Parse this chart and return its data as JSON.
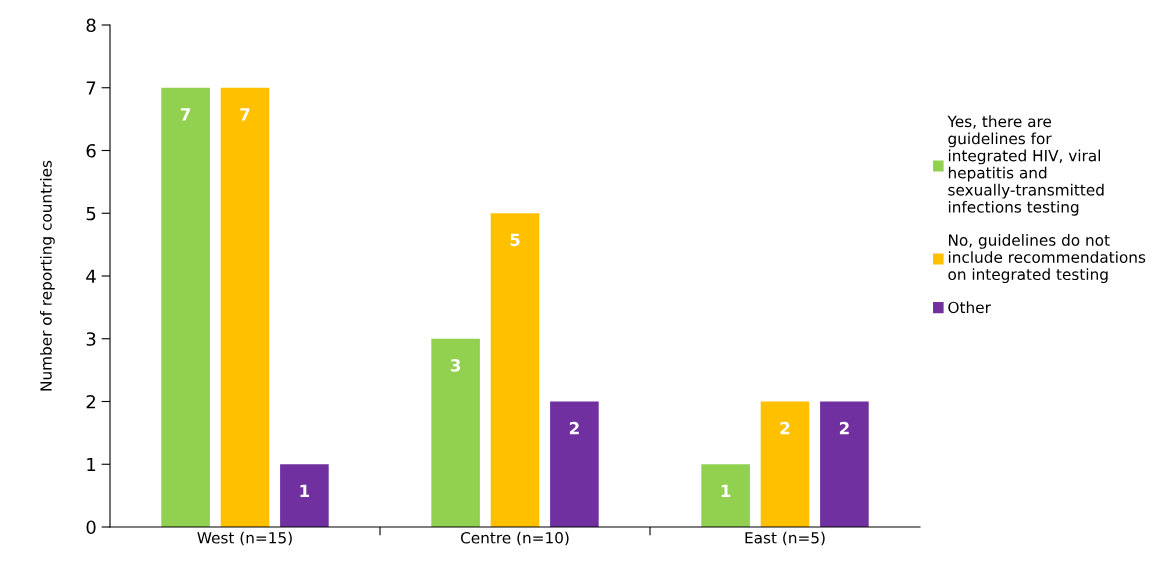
{
  "chart_data": {
    "type": "bar",
    "ylabel": "Number of reporting countries",
    "categories": [
      "West (n=15)",
      "Centre (n=10)",
      "East (n=5)"
    ],
    "series": [
      {
        "name": "Yes, there are guidelines for integrated HIV, viral hepatitis and sexually-transmitted infections testing",
        "color": "#92d050",
        "values": [
          7,
          3,
          1
        ]
      },
      {
        "name": "No, guidelines do not include recommendations on integrated testing",
        "color": "#ffc000",
        "values": [
          7,
          5,
          2
        ]
      },
      {
        "name": "Other",
        "color": "#7030a0",
        "values": [
          1,
          2,
          2
        ]
      }
    ],
    "ylim": [
      0,
      8
    ],
    "yticks": [
      0,
      1,
      2,
      3,
      4,
      5,
      6,
      7,
      8
    ],
    "grid": false,
    "legend": "right",
    "data_labels": true
  }
}
